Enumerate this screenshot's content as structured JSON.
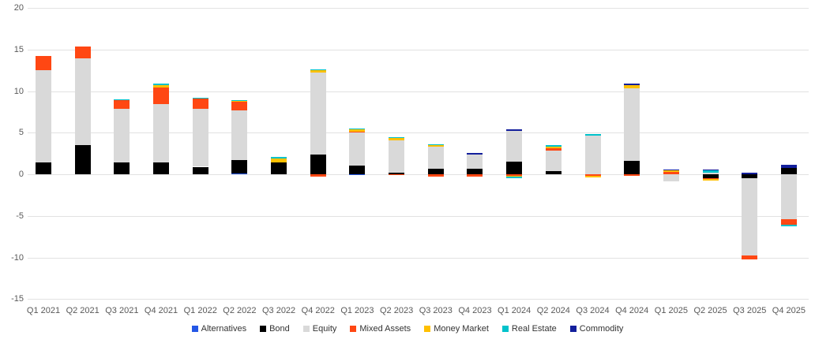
{
  "chart_data": {
    "type": "bar",
    "stacked": true,
    "title": "",
    "xlabel": "",
    "ylabel": "",
    "ylim": [
      -15,
      20
    ],
    "yticks": [
      20,
      15,
      10,
      5,
      0,
      -5,
      -10,
      -15
    ],
    "grid": true,
    "legend_position": "bottom",
    "categories": [
      "Q1 2021",
      "Q2 2021",
      "Q3 2021",
      "Q4 2021",
      "Q1 2022",
      "Q2 2022",
      "Q3 2022",
      "Q4 2022",
      "Q1 2023",
      "Q2 2023",
      "Q3 2023",
      "Q4 2023",
      "Q1 2024",
      "Q2 2024",
      "Q3 2024",
      "Q4 2024",
      "Q1 2025",
      "Q2 2025",
      "Q3 2025",
      "Q4 2025"
    ],
    "series": [
      {
        "name": "Alternatives",
        "color": "#2457E6",
        "values": [
          0,
          0,
          0,
          0,
          0,
          0.1,
          0,
          0,
          -0.1,
          0,
          0,
          0,
          0,
          0,
          0,
          0,
          0,
          0,
          0,
          0
        ]
      },
      {
        "name": "Bond",
        "color": "#000000",
        "values": [
          1.4,
          3.5,
          1.4,
          1.4,
          0.9,
          1.6,
          1.4,
          2.4,
          1.0,
          0.2,
          0.7,
          0.7,
          1.5,
          0.4,
          0,
          1.6,
          0,
          -0.5,
          -0.5,
          0.8
        ]
      },
      {
        "name": "Equity",
        "color": "#D9D9D9",
        "values": [
          11.1,
          10.4,
          6.5,
          7.0,
          7.0,
          6.0,
          0,
          9.8,
          4.0,
          3.9,
          2.6,
          1.7,
          3.7,
          2.4,
          4.6,
          8.7,
          -0.9,
          0.15,
          -9.3,
          -5.4
        ]
      },
      {
        "name": "Mixed Assets",
        "color": "#FF4713",
        "values": [
          1.7,
          1.5,
          1.0,
          2.0,
          1.2,
          1.0,
          0,
          -0.3,
          0.1,
          -0.1,
          -0.3,
          -0.3,
          -0.2,
          0.35,
          -0.2,
          -0.2,
          0.3,
          -0.1,
          -0.45,
          -0.7
        ]
      },
      {
        "name": "Money Market",
        "color": "#FFC000",
        "values": [
          0,
          0,
          0,
          0.3,
          0,
          0.1,
          0.5,
          0.3,
          0.3,
          0.3,
          0.2,
          0,
          -0.1,
          0.2,
          -0.15,
          0.45,
          0.2,
          -0.2,
          0,
          0
        ]
      },
      {
        "name": "Real Estate",
        "color": "#00C2CB",
        "values": [
          0,
          0,
          0.1,
          0.2,
          0.1,
          0.1,
          0.2,
          0.1,
          0.1,
          0.1,
          0.1,
          0,
          -0.15,
          0.2,
          0.2,
          0,
          0,
          0.3,
          0,
          -0.2
        ]
      },
      {
        "name": "Commodity",
        "color": "#131F9C",
        "values": [
          0,
          0,
          0,
          0,
          0,
          0,
          0,
          0,
          0,
          0,
          0,
          0.2,
          0.25,
          0,
          0,
          0.15,
          0.05,
          0.1,
          0.2,
          0.3
        ]
      }
    ]
  }
}
